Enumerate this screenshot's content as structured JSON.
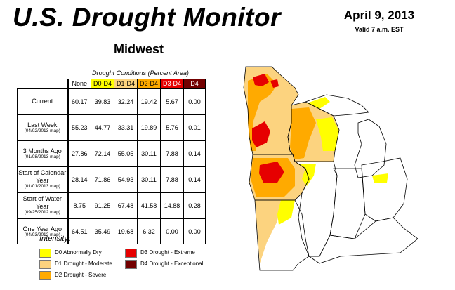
{
  "title": "U.S. Drought Monitor",
  "region": "Midwest",
  "date": "April 9, 2013",
  "valid": "Valid 7 a.m. EST",
  "table": {
    "caption": "Drought Conditions (Percent Area)",
    "columns": [
      "None",
      "D0-D4",
      "D1-D4",
      "D2-D4",
      "D3-D4",
      "D4"
    ],
    "column_colors": [
      "#ffffff",
      "#ffff00",
      "#fcd37f",
      "#ffaa00",
      "#e60000",
      "#730000"
    ],
    "rows": [
      {
        "label": "Current",
        "sub": "",
        "values": [
          "60.17",
          "39.83",
          "32.24",
          "19.42",
          "5.67",
          "0.00"
        ]
      },
      {
        "label": "Last Week",
        "sub": "(04/02/2013 map)",
        "values": [
          "55.23",
          "44.77",
          "33.31",
          "19.89",
          "5.76",
          "0.01"
        ]
      },
      {
        "label": "3 Months Ago",
        "sub": "(01/08/2013 map)",
        "values": [
          "27.86",
          "72.14",
          "55.05",
          "30.11",
          "7.88",
          "0.14"
        ]
      },
      {
        "label": "Start of Calendar Year",
        "sub": "(01/01/2013 map)",
        "values": [
          "28.14",
          "71.86",
          "54.93",
          "30.11",
          "7.88",
          "0.14"
        ]
      },
      {
        "label": "Start of Water Year",
        "sub": "(09/25/2012 map)",
        "values": [
          "8.75",
          "91.25",
          "67.48",
          "41.58",
          "14.88",
          "0.28"
        ]
      },
      {
        "label": "One Year Ago",
        "sub": "(04/03/2012 map)",
        "values": [
          "64.51",
          "35.49",
          "19.68",
          "6.32",
          "0.00",
          "0.00"
        ]
      }
    ]
  },
  "legend": {
    "title": "Intensity:",
    "items": [
      {
        "label": "D0 Abnormally Dry",
        "color": "#ffff00"
      },
      {
        "label": "D1 Drought - Moderate",
        "color": "#fcd37f"
      },
      {
        "label": "D2 Drought - Severe",
        "color": "#ffaa00"
      },
      {
        "label": "D3 Drought - Extreme",
        "color": "#e60000"
      },
      {
        "label": "D4 Drought - Exceptional",
        "color": "#730000"
      }
    ]
  },
  "map": {
    "states": [
      "Minnesota",
      "Wisconsin",
      "Michigan",
      "Iowa",
      "Missouri",
      "Illinois",
      "Indiana",
      "Ohio",
      "Kentucky"
    ],
    "colors": {
      "none": "#ffffff",
      "d0": "#ffff00",
      "d1": "#fcd37f",
      "d2": "#ffaa00",
      "d3": "#e60000",
      "outline": "#000000"
    }
  }
}
